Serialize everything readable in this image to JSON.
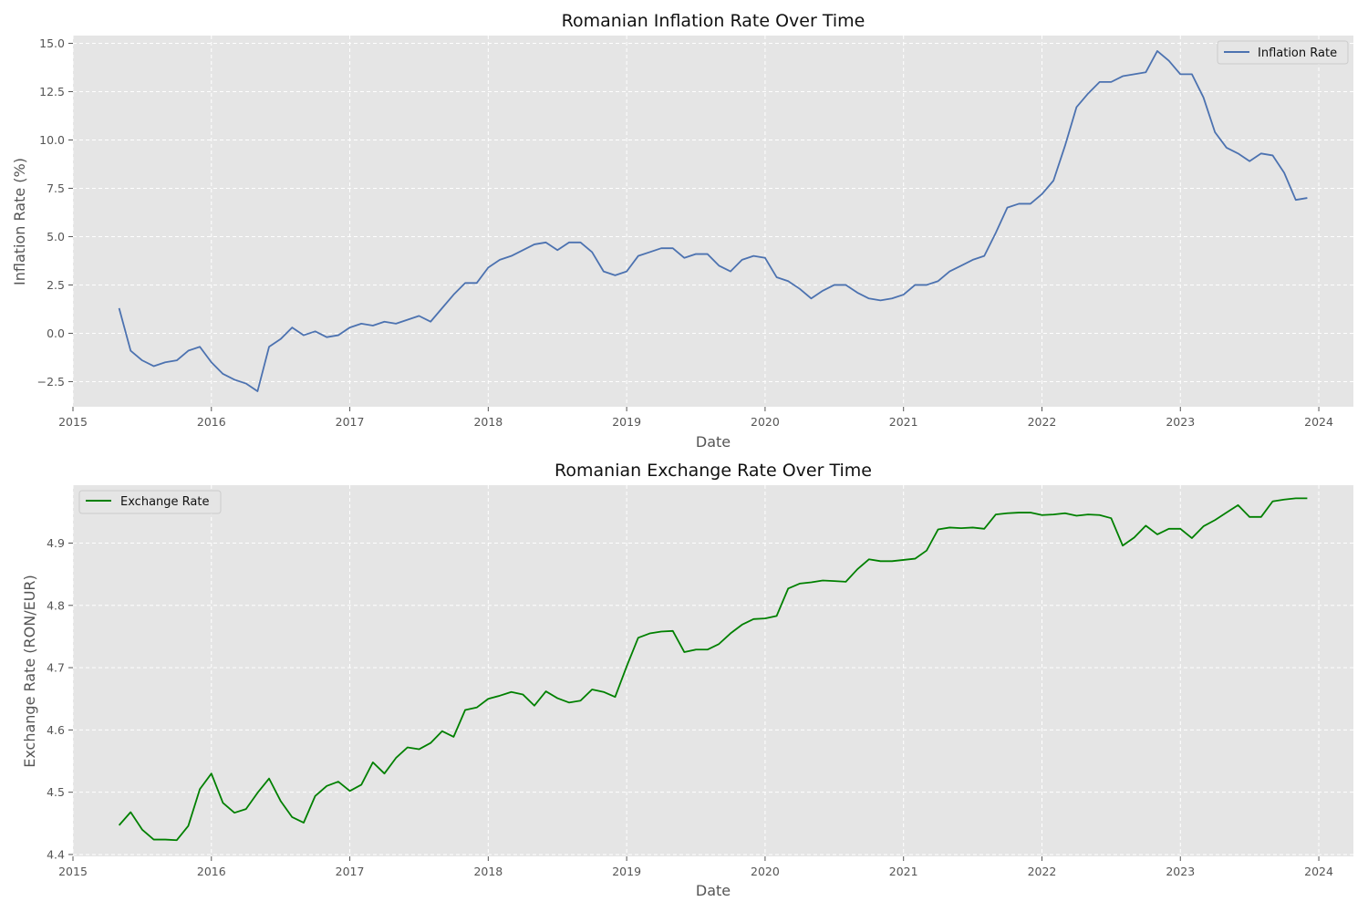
{
  "chart_data": [
    {
      "type": "line",
      "title": "Romanian Inflation Rate Over Time",
      "xlabel": "Date",
      "ylabel": "Inflation Rate (%)",
      "xlim": [
        "2015-01",
        "2024-04"
      ],
      "ylim": [
        -3.8,
        15.4
      ],
      "x_ticks": [
        "2015",
        "2016",
        "2017",
        "2018",
        "2019",
        "2020",
        "2021",
        "2022",
        "2023",
        "2024"
      ],
      "y_ticks": [
        "−2.5",
        "0.0",
        "2.5",
        "5.0",
        "7.5",
        "10.0",
        "12.5",
        "15.0"
      ],
      "grid": true,
      "legend_position": "upper right",
      "series": [
        {
          "name": "Inflation Rate",
          "color": "#4c72b0",
          "x": [
            "2015-05",
            "2015-06",
            "2015-07",
            "2015-08",
            "2015-09",
            "2015-10",
            "2015-11",
            "2015-12",
            "2016-01",
            "2016-02",
            "2016-03",
            "2016-04",
            "2016-05",
            "2016-06",
            "2016-07",
            "2016-08",
            "2016-09",
            "2016-10",
            "2016-11",
            "2016-12",
            "2017-01",
            "2017-02",
            "2017-03",
            "2017-04",
            "2017-05",
            "2017-06",
            "2017-07",
            "2017-08",
            "2017-09",
            "2017-10",
            "2017-11",
            "2017-12",
            "2018-01",
            "2018-02",
            "2018-03",
            "2018-04",
            "2018-05",
            "2018-06",
            "2018-07",
            "2018-08",
            "2018-09",
            "2018-10",
            "2018-11",
            "2018-12",
            "2019-01",
            "2019-02",
            "2019-03",
            "2019-04",
            "2019-05",
            "2019-06",
            "2019-07",
            "2019-08",
            "2019-09",
            "2019-10",
            "2019-11",
            "2019-12",
            "2020-01",
            "2020-02",
            "2020-03",
            "2020-04",
            "2020-05",
            "2020-06",
            "2020-07",
            "2020-08",
            "2020-09",
            "2020-10",
            "2020-11",
            "2020-12",
            "2021-01",
            "2021-02",
            "2021-03",
            "2021-04",
            "2021-05",
            "2021-06",
            "2021-07",
            "2021-08",
            "2021-09",
            "2021-10",
            "2021-11",
            "2021-12",
            "2022-01",
            "2022-02",
            "2022-03",
            "2022-04",
            "2022-05",
            "2022-06",
            "2022-07",
            "2022-08",
            "2022-09",
            "2022-10",
            "2022-11",
            "2022-12",
            "2023-01",
            "2023-02",
            "2023-03",
            "2023-04",
            "2023-05",
            "2023-06",
            "2023-07",
            "2023-08",
            "2023-09",
            "2023-10",
            "2023-11",
            "2023-12"
          ],
          "values": [
            1.3,
            -0.9,
            -1.4,
            -1.7,
            -1.5,
            -1.4,
            -0.9,
            -0.7,
            -1.5,
            -2.1,
            -2.4,
            -2.6,
            -3.0,
            -0.7,
            -0.3,
            0.3,
            -0.1,
            0.1,
            -0.2,
            -0.1,
            0.3,
            0.5,
            0.4,
            0.6,
            0.5,
            0.7,
            0.9,
            0.6,
            1.3,
            2.0,
            2.6,
            2.6,
            3.4,
            3.8,
            4.0,
            4.3,
            4.6,
            4.7,
            4.3,
            4.7,
            4.7,
            4.2,
            3.2,
            3.0,
            3.2,
            4.0,
            4.2,
            4.4,
            4.4,
            3.9,
            4.1,
            4.1,
            3.5,
            3.2,
            3.8,
            4.0,
            3.9,
            2.9,
            2.7,
            2.3,
            1.8,
            2.2,
            2.5,
            2.5,
            2.1,
            1.8,
            1.7,
            1.8,
            2.0,
            2.5,
            2.5,
            2.7,
            3.2,
            3.5,
            3.8,
            4.0,
            5.2,
            6.5,
            6.7,
            6.7,
            7.2,
            7.9,
            9.7,
            11.7,
            12.4,
            13.0,
            13.0,
            13.3,
            13.4,
            13.5,
            14.6,
            14.1,
            13.4,
            13.4,
            12.2,
            10.4,
            9.6,
            9.3,
            8.9,
            9.3,
            9.2,
            8.3,
            6.9,
            7.0
          ]
        }
      ]
    },
    {
      "type": "line",
      "title": "Romanian Exchange Rate Over Time",
      "xlabel": "Date",
      "ylabel": "Exchange Rate (RON/EUR)",
      "xlim": [
        "2015-01",
        "2024-04"
      ],
      "ylim": [
        4.397,
        4.993
      ],
      "x_ticks": [
        "2015",
        "2016",
        "2017",
        "2018",
        "2019",
        "2020",
        "2021",
        "2022",
        "2023",
        "2024"
      ],
      "y_ticks": [
        "4.4",
        "4.5",
        "4.6",
        "4.7",
        "4.8",
        "4.9"
      ],
      "grid": true,
      "legend_position": "upper left",
      "series": [
        {
          "name": "Exchange Rate",
          "color": "#008000",
          "x": [
            "2015-05",
            "2015-06",
            "2015-07",
            "2015-08",
            "2015-09",
            "2015-10",
            "2015-11",
            "2015-12",
            "2016-01",
            "2016-02",
            "2016-03",
            "2016-04",
            "2016-05",
            "2016-06",
            "2016-07",
            "2016-08",
            "2016-09",
            "2016-10",
            "2016-11",
            "2016-12",
            "2017-01",
            "2017-02",
            "2017-03",
            "2017-04",
            "2017-05",
            "2017-06",
            "2017-07",
            "2017-08",
            "2017-09",
            "2017-10",
            "2017-11",
            "2017-12",
            "2018-01",
            "2018-02",
            "2018-03",
            "2018-04",
            "2018-05",
            "2018-06",
            "2018-07",
            "2018-08",
            "2018-09",
            "2018-10",
            "2018-11",
            "2018-12",
            "2019-01",
            "2019-02",
            "2019-03",
            "2019-04",
            "2019-05",
            "2019-06",
            "2019-07",
            "2019-08",
            "2019-09",
            "2019-10",
            "2019-11",
            "2019-12",
            "2020-01",
            "2020-02",
            "2020-03",
            "2020-04",
            "2020-05",
            "2020-06",
            "2020-07",
            "2020-08",
            "2020-09",
            "2020-10",
            "2020-11",
            "2020-12",
            "2021-01",
            "2021-02",
            "2021-03",
            "2021-04",
            "2021-05",
            "2021-06",
            "2021-07",
            "2021-08",
            "2021-09",
            "2021-10",
            "2021-11",
            "2021-12",
            "2022-01",
            "2022-02",
            "2022-03",
            "2022-04",
            "2022-05",
            "2022-06",
            "2022-07",
            "2022-08",
            "2022-09",
            "2022-10",
            "2022-11",
            "2022-12",
            "2023-01",
            "2023-02",
            "2023-03",
            "2023-04",
            "2023-05",
            "2023-06",
            "2023-07",
            "2023-08",
            "2023-09",
            "2023-10",
            "2023-11",
            "2023-12"
          ],
          "values": [
            4.447,
            4.468,
            4.44,
            4.424,
            4.424,
            4.423,
            4.446,
            4.505,
            4.53,
            4.483,
            4.467,
            4.473,
            4.499,
            4.522,
            4.486,
            4.46,
            4.451,
            4.494,
            4.51,
            4.517,
            4.502,
            4.512,
            4.548,
            4.53,
            4.555,
            4.572,
            4.569,
            4.579,
            4.598,
            4.589,
            4.632,
            4.636,
            4.65,
            4.655,
            4.661,
            4.657,
            4.639,
            4.662,
            4.651,
            4.644,
            4.647,
            4.665,
            4.661,
            4.653,
            4.702,
            4.748,
            4.755,
            4.758,
            4.759,
            4.725,
            4.729,
            4.729,
            4.738,
            4.755,
            4.769,
            4.778,
            4.779,
            4.783,
            4.827,
            4.835,
            4.837,
            4.84,
            4.839,
            4.838,
            4.858,
            4.874,
            4.871,
            4.871,
            4.873,
            4.875,
            4.888,
            4.922,
            4.925,
            4.924,
            4.925,
            4.923,
            4.946,
            4.948,
            4.949,
            4.949,
            4.945,
            4.946,
            4.948,
            4.944,
            4.946,
            4.945,
            4.94,
            4.896,
            4.909,
            4.928,
            4.914,
            4.923,
            4.923,
            4.908,
            4.927,
            4.937,
            4.949,
            4.961,
            4.942,
            4.942,
            4.967,
            4.97,
            4.972,
            4.972
          ]
        }
      ]
    }
  ]
}
